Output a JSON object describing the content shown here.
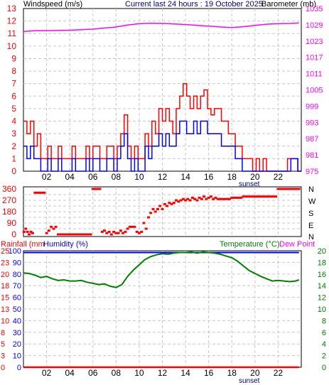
{
  "header": {
    "left_label": "Windspeed (m/s)",
    "center_label": "Current last 24 hours : 19 October 2025",
    "right_label": "Barometer (mb)"
  },
  "direction_panel": {
    "compass_labels": [
      "N",
      "W",
      "S",
      "E",
      "N"
    ]
  },
  "bottom_panel": {
    "left_label_rain": "Rainfall (mm",
    "left_label_humidity": "Humidity (%)",
    "right_label_temp": "Temperature (°C)",
    "right_label_dew": "Dew Point"
  },
  "x_axis": {
    "tick_labels": [
      "02",
      "04",
      "06",
      "08",
      "10",
      "12",
      "14",
      "16",
      "18",
      "20",
      "22"
    ],
    "tick_hours": [
      2,
      4,
      6,
      8,
      10,
      12,
      14,
      16,
      18,
      20,
      22
    ],
    "sunset_label": "sunset",
    "sunset_hour": 19.5,
    "range_hours": [
      0,
      24
    ]
  },
  "colors": {
    "wind_gust": "#ff0000",
    "wind_avg": "#0000ff",
    "barometer": "#ff00ff",
    "direction": "#ff0000",
    "temperature": "#008000",
    "humidity": "#0000ff",
    "dew_point": "#ff00ff",
    "rainfall": "#ff0000",
    "grid": "#c8c8c8"
  },
  "chart_data": [
    {
      "type": "line",
      "id": "wind-pressure",
      "xlabel": "",
      "ylabel": "Windspeed (m/s)",
      "ylim": [
        0,
        13
      ],
      "yticks": [
        0,
        1,
        2,
        3,
        4,
        5,
        6,
        7,
        8,
        9,
        10,
        11,
        12,
        13
      ],
      "y2label": "Barometer (mb)",
      "y2lim": [
        975,
        1035
      ],
      "y2ticks": [
        975,
        981,
        987,
        993,
        999,
        1005,
        1011,
        1017,
        1023,
        1029,
        1035
      ],
      "grid": true,
      "series": [
        {
          "key": "gust",
          "axis": "left",
          "style": "step",
          "x": [
            0,
            0.3,
            0.6,
            0.9,
            1.2,
            1.5,
            1.8,
            2.1,
            2.4,
            2.7,
            3.0,
            3.3,
            3.6,
            3.9,
            4.2,
            4.5,
            4.8,
            5.1,
            5.4,
            5.7,
            6.0,
            6.3,
            6.6,
            6.9,
            7.2,
            7.5,
            7.8,
            8.1,
            8.4,
            8.7,
            9.0,
            9.3,
            9.6,
            9.9,
            10.2,
            10.5,
            10.8,
            11.1,
            11.4,
            11.7,
            12.0,
            12.3,
            12.6,
            12.9,
            13.2,
            13.5,
            13.8,
            14.1,
            14.4,
            14.7,
            15.0,
            15.3,
            15.6,
            15.9,
            16.2,
            16.5,
            16.8,
            17.1,
            17.4,
            17.7,
            18.0,
            18.3,
            18.6,
            18.9,
            19.2,
            19.5,
            19.8,
            20.1,
            20.4,
            20.7,
            21.0,
            21.3,
            21.6,
            21.9,
            22.2,
            22.5,
            22.8,
            23.1,
            23.4,
            23.7
          ],
          "values": [
            4,
            3,
            4,
            2,
            3,
            1,
            1,
            2,
            1,
            1,
            2,
            1,
            1,
            1,
            2,
            1,
            1,
            1,
            2,
            1,
            2,
            2,
            1,
            1,
            2,
            2,
            1,
            2,
            3,
            4.5,
            2,
            1,
            2,
            1,
            1,
            3,
            2,
            4,
            3,
            5,
            4,
            5,
            4,
            3,
            5,
            6,
            7,
            6,
            5,
            6,
            5,
            6,
            6.5,
            5,
            4.5,
            5,
            5,
            4,
            4,
            3,
            3,
            2,
            2,
            1,
            1,
            1,
            0,
            1,
            0,
            1,
            0,
            0,
            0,
            0,
            0,
            0,
            1,
            1,
            1,
            0
          ]
        },
        {
          "key": "average",
          "axis": "left",
          "style": "step",
          "x": [
            0,
            0.3,
            0.6,
            0.9,
            1.2,
            1.5,
            1.8,
            2.1,
            2.4,
            2.7,
            3.0,
            3.3,
            3.6,
            3.9,
            4.2,
            4.5,
            4.8,
            5.1,
            5.4,
            5.7,
            6.0,
            6.3,
            6.6,
            6.9,
            7.2,
            7.5,
            7.8,
            8.1,
            8.4,
            8.7,
            9.0,
            9.3,
            9.6,
            9.9,
            10.2,
            10.5,
            10.8,
            11.1,
            11.4,
            11.7,
            12.0,
            12.3,
            12.6,
            12.9,
            13.2,
            13.5,
            13.8,
            14.1,
            14.4,
            14.7,
            15.0,
            15.3,
            15.6,
            15.9,
            16.2,
            16.5,
            16.8,
            17.1,
            17.4,
            17.7,
            18.0,
            18.3,
            18.6,
            18.9,
            19.2,
            19.5,
            19.8,
            20.1,
            20.4,
            20.7,
            21.0,
            21.3,
            21.6,
            21.9,
            22.2,
            22.5,
            22.8,
            23.1,
            23.4,
            23.7
          ],
          "values": [
            2,
            1,
            2,
            1,
            1,
            0,
            0,
            1,
            0,
            0,
            1,
            0,
            0,
            0,
            1,
            0,
            0,
            0,
            1,
            0,
            1,
            1,
            0,
            0,
            1,
            1,
            0,
            1,
            2,
            3,
            1,
            0,
            1,
            0,
            0,
            2,
            1,
            2,
            2,
            3,
            2,
            3,
            2,
            2,
            3,
            4,
            4,
            3,
            3,
            4,
            3,
            4,
            4,
            3,
            3,
            3,
            3,
            2,
            2,
            2,
            2,
            1,
            1,
            0,
            0,
            0,
            0,
            0,
            0,
            0,
            0,
            0,
            0,
            0,
            0,
            0,
            0,
            1,
            1,
            0
          ]
        },
        {
          "key": "barometer",
          "axis": "right",
          "style": "line",
          "x": [
            0,
            1,
            2,
            3,
            4,
            5,
            6,
            7,
            8,
            9,
            10,
            11,
            12,
            13,
            14,
            15,
            16,
            17,
            18,
            19,
            20,
            21,
            22,
            23,
            23.8
          ],
          "values": [
            1026.5,
            1026.8,
            1026.8,
            1026.9,
            1027,
            1027.2,
            1027.4,
            1027.8,
            1028.2,
            1028.9,
            1029.4,
            1029.6,
            1029.5,
            1029.3,
            1029.1,
            1028.8,
            1028.5,
            1028.2,
            1028,
            1028.3,
            1028.8,
            1029.2,
            1029.4,
            1029.5,
            1029.7
          ]
        }
      ]
    },
    {
      "type": "scatter",
      "id": "wind-direction",
      "ylabel": "",
      "ylim": [
        0,
        360
      ],
      "yticks": [
        0,
        45,
        90,
        135,
        180,
        225,
        270,
        315,
        360
      ],
      "ytick_labels": [
        "0",
        "",
        "90",
        "",
        "180",
        "",
        "270",
        "",
        "360"
      ],
      "grid": true,
      "series": [
        {
          "key": "direction",
          "x": [
            0.05,
            0.2,
            0.35,
            0.5,
            0.65,
            0.8,
            1.0,
            1.2,
            1.4,
            1.6,
            1.8,
            2.0,
            2.2,
            2.4,
            2.6,
            2.8,
            3.0,
            3.2,
            3.4,
            3.6,
            3.8,
            4.0,
            4.2,
            4.4,
            4.6,
            4.8,
            5.0,
            5.2,
            5.4,
            5.6,
            5.8,
            6.0,
            6.2,
            6.4,
            6.6,
            6.8,
            7.0,
            7.2,
            7.4,
            7.6,
            7.8,
            8.0,
            8.2,
            8.4,
            8.6,
            8.8,
            9.0,
            9.2,
            9.4,
            9.6,
            9.8,
            10.0,
            10.2,
            10.4,
            10.6,
            10.8,
            11.0,
            11.2,
            11.4,
            11.6,
            11.8,
            12.0,
            12.2,
            12.4,
            12.6,
            12.8,
            13.0,
            13.2,
            13.4,
            13.6,
            13.8,
            14.0,
            14.2,
            14.4,
            14.6,
            14.8,
            15.0,
            15.2,
            15.4,
            15.6,
            15.8,
            16.0,
            16.2,
            16.4,
            16.6,
            16.8,
            17.0,
            17.2,
            17.4,
            17.6,
            17.8,
            18.0,
            18.2,
            18.4,
            18.6,
            18.8,
            19.0,
            19.2,
            19.4,
            19.6,
            19.8,
            20.0,
            20.2,
            20.4,
            20.6,
            20.8,
            21.0,
            21.2,
            21.4,
            21.6,
            21.8,
            22.0,
            22.2,
            22.4,
            22.6,
            22.8,
            23.0,
            23.2,
            23.4,
            23.6,
            23.8
          ],
          "values": [
            20,
            45,
            20,
            0,
            20,
            10,
            330,
            330,
            330,
            330,
            330,
            10,
            30,
            60,
            45,
            60,
            0,
            0,
            0,
            0,
            0,
            0,
            0,
            0,
            0,
            0,
            0,
            0,
            0,
            0,
            0,
            360,
            360,
            360,
            360,
            20,
            30,
            10,
            20,
            0,
            20,
            10,
            10,
            30,
            10,
            20,
            45,
            60,
            60,
            60,
            20,
            10,
            20,
            90,
            45,
            135,
            170,
            200,
            180,
            200,
            225,
            200,
            240,
            225,
            250,
            240,
            250,
            270,
            260,
            270,
            280,
            270,
            280,
            270,
            290,
            280,
            270,
            290,
            280,
            300,
            280,
            290,
            300,
            280,
            290,
            280,
            280,
            280,
            280,
            280,
            280,
            290,
            290,
            290,
            290,
            290,
            300,
            300,
            300,
            300,
            300,
            300,
            300,
            300,
            300,
            300,
            300,
            300,
            300,
            300,
            300,
            360,
            360,
            360,
            360,
            360,
            360,
            360,
            360,
            360,
            360
          ]
        }
      ]
    },
    {
      "type": "line",
      "id": "temp-humidity",
      "ylabel": "Rainfall (mm) / Humidity (%)",
      "ylim": [
        0,
        100
      ],
      "y_humidity_ticks": [
        0,
        10,
        20,
        30,
        40,
        50,
        60,
        70,
        80,
        90,
        100
      ],
      "y_rain_ticks": [
        0,
        3,
        5,
        8,
        10,
        13,
        15,
        18,
        20,
        23,
        25
      ],
      "y2label": "Temperature (°C)",
      "y2lim": [
        0,
        20
      ],
      "y2ticks": [
        0,
        2,
        4,
        6,
        8,
        10,
        12,
        14,
        16,
        18,
        20
      ],
      "grid": true,
      "series": [
        {
          "key": "temperature",
          "axis": "right",
          "x": [
            0,
            0.5,
            1,
            1.5,
            2,
            2.5,
            3,
            3.5,
            4,
            4.5,
            5,
            5.5,
            6,
            6.5,
            7,
            7.5,
            8,
            8.5,
            9,
            9.5,
            10,
            10.5,
            11,
            11.5,
            12,
            12.5,
            13,
            13.5,
            14,
            14.5,
            15,
            15.5,
            16,
            16.5,
            17,
            17.5,
            18,
            18.5,
            19,
            19.5,
            20,
            20.5,
            21,
            21.5,
            22,
            22.5,
            23,
            23.5,
            23.8
          ],
          "values": [
            16.2,
            16.1,
            15.8,
            15.4,
            15.6,
            15.2,
            14.9,
            15.0,
            14.8,
            14.8,
            14.9,
            14.6,
            14.4,
            14.2,
            14.3,
            13.9,
            13.7,
            14.2,
            15.6,
            16.7,
            17.6,
            18.5,
            19.0,
            19.3,
            19.5,
            19.4,
            19.6,
            19.7,
            19.7,
            19.8,
            19.6,
            19.8,
            19.7,
            19.6,
            19.4,
            19.1,
            18.8,
            18.2,
            17.4,
            16.6,
            16.1,
            15.6,
            15.2,
            14.8,
            14.9,
            14.8,
            14.7,
            14.8,
            15.0
          ]
        },
        {
          "key": "humidity",
          "axis": "left",
          "x": [
            0,
            23.8
          ],
          "values": [
            98.5,
            98.5
          ]
        },
        {
          "key": "rainfall",
          "axis": "left",
          "x": [
            0,
            23.8
          ],
          "values": [
            0,
            0
          ]
        }
      ]
    }
  ]
}
